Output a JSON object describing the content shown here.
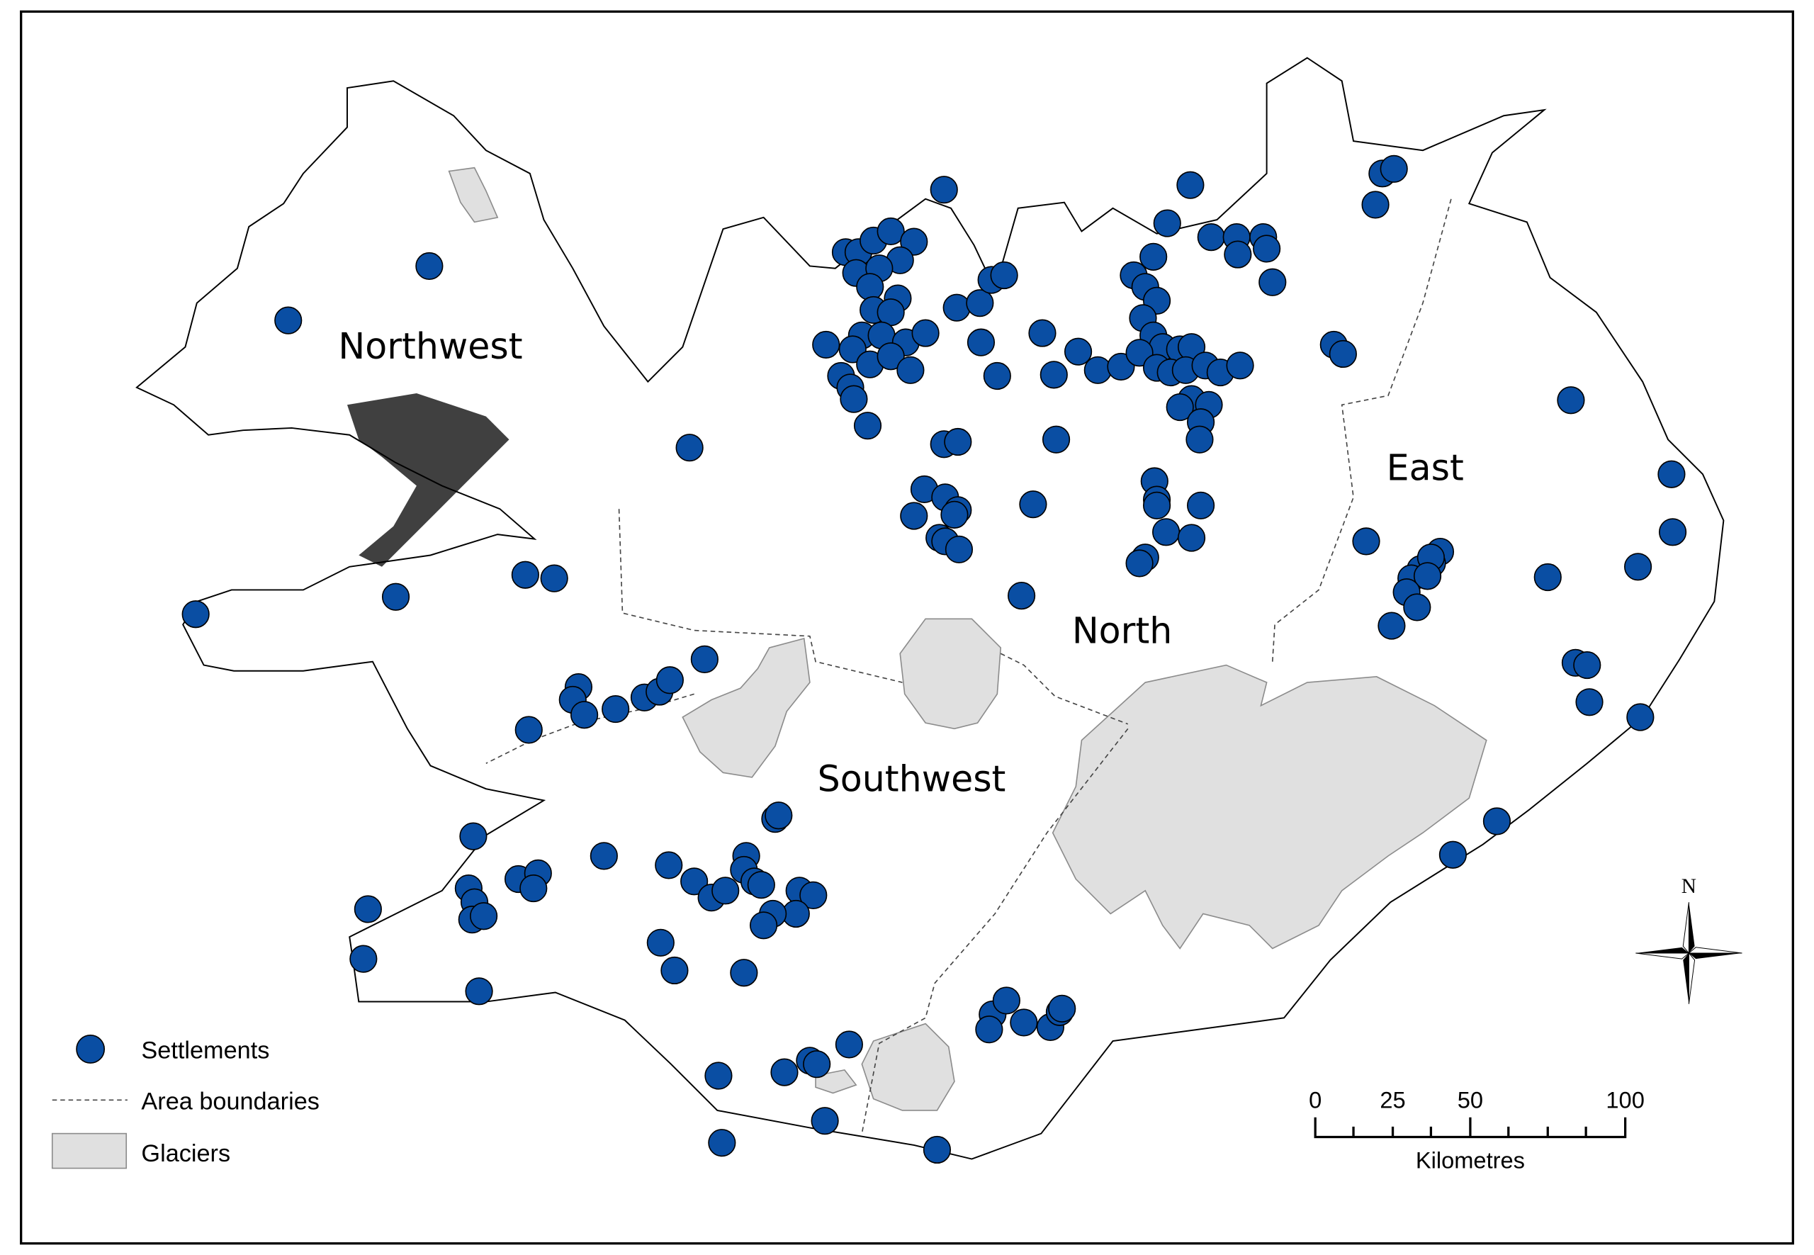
{
  "regions": {
    "northwest": "Northwest",
    "north": "North",
    "east": "East",
    "southwest": "Southwest"
  },
  "legend": {
    "settlements": "Settlements",
    "boundaries": "Area boundaries",
    "glaciers": "Glaciers"
  },
  "scale_bar": {
    "ticks": [
      "0",
      "25",
      "50",
      "100"
    ],
    "unit": "Kilometres"
  },
  "north_arrow": {
    "label": "N",
    "icon": "compass-rose-icon"
  },
  "colors": {
    "settlement_fill": "#0a4ea3",
    "glacier_fill": "#e0e0e0",
    "glacier_stroke": "#8c8c8c",
    "coastline": "#000000"
  }
}
